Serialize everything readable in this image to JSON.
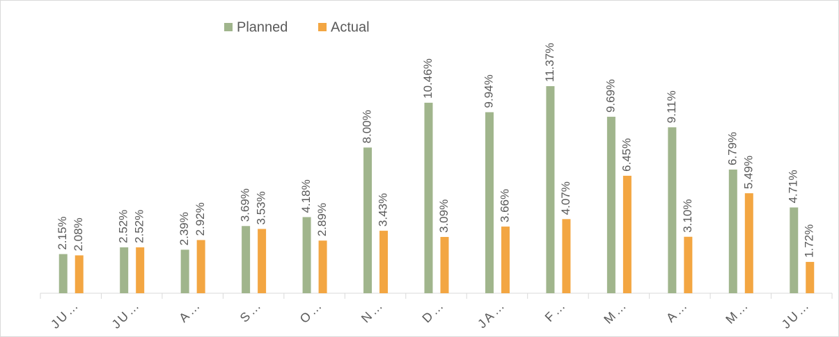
{
  "chart_data": {
    "type": "bar",
    "categories": [
      "JU…",
      "JU…",
      "A…",
      "S…",
      "O…",
      "N…",
      "D…",
      "JA…",
      "F…",
      "M…",
      "A…",
      "M…",
      "JU…"
    ],
    "series": [
      {
        "name": "Planned",
        "color": "#a0b58c",
        "values": [
          2.15,
          2.52,
          2.39,
          3.69,
          4.18,
          8.0,
          10.46,
          9.94,
          11.37,
          9.69,
          9.11,
          6.79,
          4.71
        ],
        "value_labels": [
          "2.15%",
          "2.52%",
          "2.39%",
          "3.69%",
          "4.18%",
          "8.00%",
          "10.46%",
          "9.94%",
          "11.37%",
          "9.69%",
          "9.11%",
          "6.79%",
          "4.71%"
        ]
      },
      {
        "name": "Actual",
        "color": "#f3a642",
        "values": [
          2.08,
          2.52,
          2.92,
          3.53,
          2.89,
          3.43,
          3.09,
          3.66,
          4.07,
          6.45,
          3.1,
          5.49,
          1.72
        ],
        "value_labels": [
          "2.08%",
          "2.52%",
          "2.92%",
          "3.53%",
          "2.89%",
          "3.43%",
          "3.09%",
          "3.66%",
          "4.07%",
          "6.45%",
          "3.10%",
          "5.49%",
          "1.72%"
        ]
      }
    ],
    "legend": "top"
  }
}
